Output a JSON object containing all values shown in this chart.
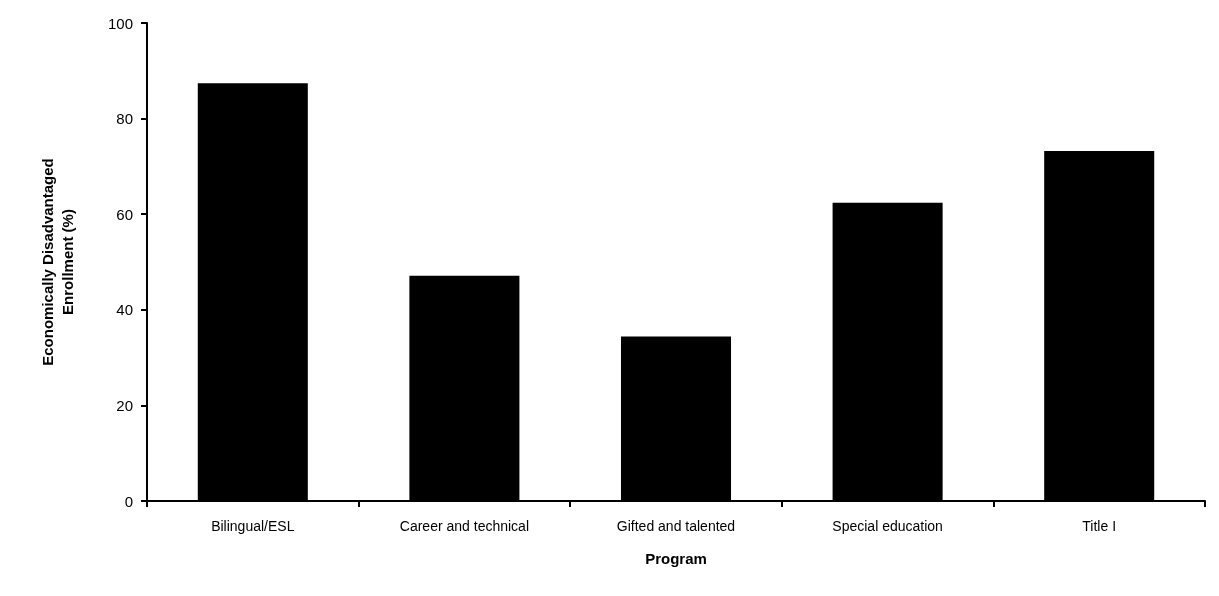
{
  "chart_data": {
    "type": "bar",
    "xlabel": "Program",
    "ylabel": "Economically Disadvantaged\nEnrollment (%)",
    "categories": [
      "Bilingual/ESL",
      "Career and technical",
      "Gifted and talented",
      "Special education",
      "Title I"
    ],
    "values": [
      87.4,
      47.1,
      34.4,
      62.4,
      73.2
    ],
    "color": "#000000",
    "ylim": [
      0,
      100
    ],
    "yticks": [
      0,
      20,
      40,
      60,
      80,
      100
    ],
    "grid": false
  }
}
